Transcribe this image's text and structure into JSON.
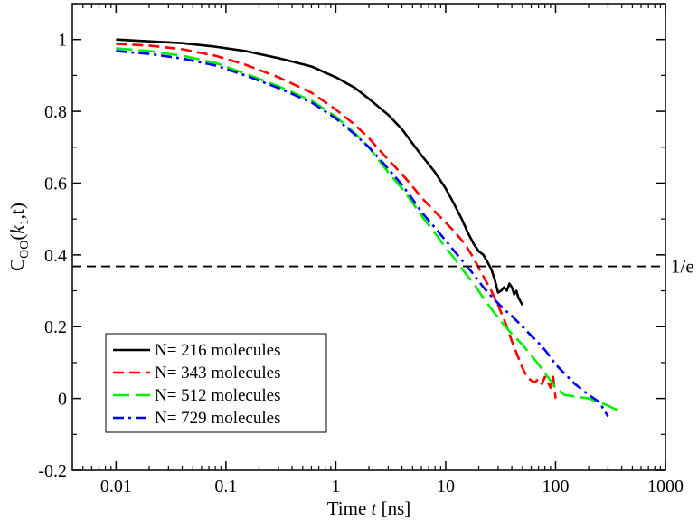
{
  "chart_data": {
    "type": "line",
    "title": "",
    "xlabel_prefix": "Time ",
    "xlabel_var": "t",
    "xlabel_suffix": " [ns]",
    "ylabel_main": "C",
    "ylabel_sub": "OO",
    "ylabel_paren_open": "(",
    "ylabel_k": "k",
    "ylabel_k_sub": "1",
    "ylabel_rest": ",t)",
    "xscale": "log",
    "xlim": [
      0.004,
      1000
    ],
    "ylim": [
      -0.2,
      1.1
    ],
    "x_ticks": [
      {
        "value": 0.01,
        "label": "0.01"
      },
      {
        "value": 0.1,
        "label": "0.1"
      },
      {
        "value": 1,
        "label": "1"
      },
      {
        "value": 10,
        "label": "10"
      },
      {
        "value": 100,
        "label": "100"
      },
      {
        "value": 1000,
        "label": "1000"
      }
    ],
    "y_ticks": [
      {
        "value": -0.2,
        "label": "-0.2"
      },
      {
        "value": 0,
        "label": "0"
      },
      {
        "value": 0.2,
        "label": "0.2"
      },
      {
        "value": 0.4,
        "label": "0.4"
      },
      {
        "value": 0.6,
        "label": "0.6"
      },
      {
        "value": 0.8,
        "label": "0.8"
      },
      {
        "value": 1,
        "label": "1"
      }
    ],
    "reference_line": {
      "y": 0.3679,
      "label": "1/e",
      "color": "#000000"
    },
    "legend_position": "bottom-left",
    "series": [
      {
        "name": "N= 216 molecules",
        "color": "#000000",
        "dash": "solid",
        "x": [
          0.01,
          0.02,
          0.04,
          0.08,
          0.15,
          0.3,
          0.6,
          1,
          1.5,
          2,
          3,
          4,
          5,
          6,
          8,
          10,
          12,
          14,
          16,
          18,
          20,
          22,
          24,
          26,
          28,
          30,
          32,
          34,
          36,
          38,
          40,
          42,
          44,
          46,
          48,
          50
        ],
        "y": [
          1.0,
          0.995,
          0.99,
          0.98,
          0.968,
          0.948,
          0.925,
          0.895,
          0.865,
          0.835,
          0.79,
          0.75,
          0.71,
          0.678,
          0.63,
          0.585,
          0.54,
          0.5,
          0.46,
          0.43,
          0.41,
          0.4,
          0.38,
          0.36,
          0.33,
          0.295,
          0.3,
          0.31,
          0.3,
          0.32,
          0.31,
          0.29,
          0.3,
          0.28,
          0.27,
          0.26
        ]
      },
      {
        "name": "N= 343 molecules",
        "color": "#ff0000",
        "dash": "dashed",
        "x": [
          0.01,
          0.02,
          0.04,
          0.08,
          0.15,
          0.3,
          0.6,
          1,
          1.5,
          2,
          3,
          4,
          5,
          6,
          8,
          10,
          12,
          15,
          18,
          22,
          26,
          30,
          35,
          40,
          45,
          50,
          55,
          60,
          65,
          70,
          75,
          80,
          85,
          90,
          95,
          100
        ],
        "y": [
          0.988,
          0.983,
          0.973,
          0.955,
          0.93,
          0.895,
          0.852,
          0.805,
          0.762,
          0.725,
          0.665,
          0.625,
          0.59,
          0.56,
          0.52,
          0.49,
          0.465,
          0.43,
          0.39,
          0.34,
          0.3,
          0.26,
          0.21,
          0.16,
          0.12,
          0.085,
          0.06,
          0.05,
          0.045,
          0.055,
          0.04,
          0.06,
          0.045,
          0.03,
          0.06,
          0.0
        ]
      },
      {
        "name": "N= 512 molecules",
        "color": "#00ee00",
        "dash": "longdash",
        "x": [
          0.01,
          0.02,
          0.04,
          0.08,
          0.15,
          0.3,
          0.6,
          1,
          1.5,
          2,
          3,
          4,
          5,
          6,
          8,
          10,
          12,
          15,
          18,
          22,
          26,
          30,
          35,
          40,
          50,
          60,
          70,
          80,
          90,
          100,
          120,
          150,
          200,
          250,
          300,
          350,
          400
        ],
        "y": [
          0.975,
          0.968,
          0.955,
          0.935,
          0.905,
          0.87,
          0.83,
          0.785,
          0.738,
          0.7,
          0.63,
          0.585,
          0.545,
          0.51,
          0.46,
          0.42,
          0.39,
          0.35,
          0.32,
          0.28,
          0.25,
          0.225,
          0.2,
          0.18,
          0.15,
          0.12,
          0.095,
          0.07,
          0.05,
          0.03,
          0.01,
          0.005,
          0.0,
          -0.01,
          -0.02,
          -0.03,
          -0.035
        ]
      },
      {
        "name": "N= 729 molecules",
        "color": "#0000ff",
        "dash": "dashdot",
        "x": [
          0.01,
          0.02,
          0.04,
          0.08,
          0.15,
          0.3,
          0.6,
          1,
          1.5,
          2,
          3,
          4,
          5,
          6,
          8,
          10,
          12,
          15,
          18,
          22,
          26,
          30,
          35,
          40,
          50,
          60,
          70,
          80,
          90,
          100,
          120,
          150,
          200,
          250,
          300
        ],
        "y": [
          0.968,
          0.96,
          0.947,
          0.928,
          0.9,
          0.865,
          0.825,
          0.78,
          0.735,
          0.7,
          0.64,
          0.595,
          0.555,
          0.52,
          0.475,
          0.44,
          0.41,
          0.375,
          0.345,
          0.31,
          0.285,
          0.265,
          0.245,
          0.23,
          0.2,
          0.175,
          0.155,
          0.135,
          0.115,
          0.095,
          0.07,
          0.04,
          0.01,
          -0.01,
          -0.05
        ]
      }
    ]
  }
}
